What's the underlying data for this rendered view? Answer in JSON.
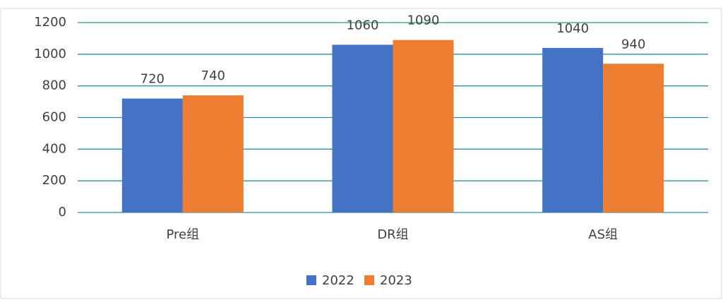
{
  "chart_data": {
    "type": "bar",
    "categories": [
      "Pre组",
      "DR组",
      "AS组"
    ],
    "series": [
      {
        "name": "2022",
        "color": "#4472c4",
        "values": [
          720,
          1060,
          1040
        ]
      },
      {
        "name": "2023",
        "color": "#ed7d31",
        "values": [
          740,
          1090,
          940
        ]
      }
    ],
    "ylim": [
      0,
      1200
    ],
    "yticks": [
      0,
      200,
      400,
      600,
      800,
      1000,
      1200
    ],
    "grid": true,
    "legend": "bottom"
  }
}
